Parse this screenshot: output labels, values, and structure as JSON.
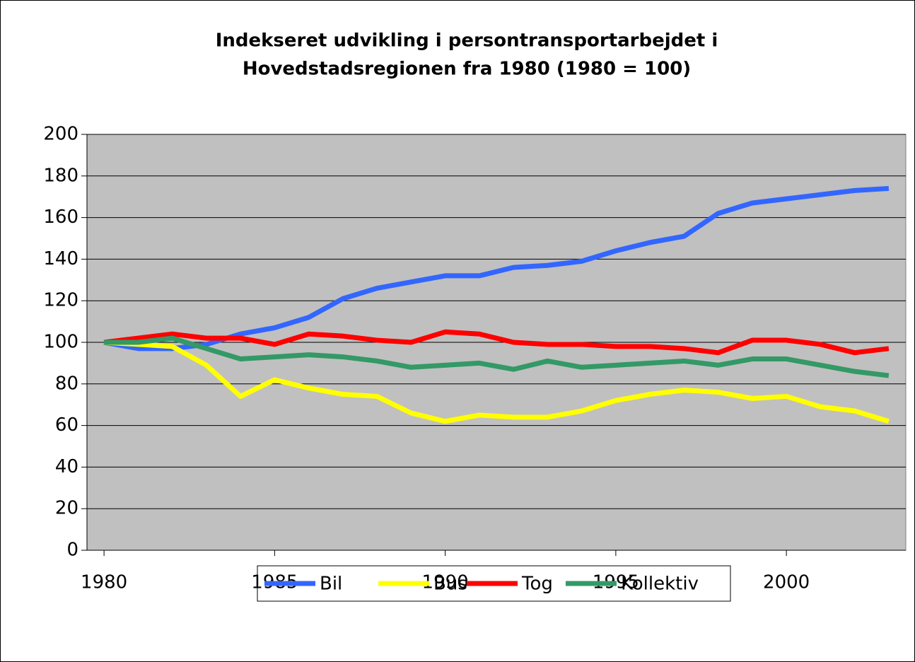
{
  "chart_data": {
    "type": "line",
    "title": [
      "Indekseret udvikling i persontransportarbejdet i",
      "Hovedstadsregionen fra 1980 (1980 = 100)"
    ],
    "x": [
      1980,
      1981,
      1982,
      1983,
      1984,
      1985,
      1986,
      1987,
      1988,
      1989,
      1990,
      1991,
      1992,
      1993,
      1994,
      1995,
      1996,
      1997,
      1998,
      1999,
      2000,
      2001,
      2002,
      2003
    ],
    "series": [
      {
        "name": "Bil",
        "color": "#3366ff",
        "values": [
          100,
          97,
          97,
          99,
          104,
          107,
          112,
          121,
          126,
          129,
          132,
          132,
          136,
          137,
          139,
          144,
          148,
          151,
          162,
          167,
          169,
          171,
          173,
          174
        ]
      },
      {
        "name": "Bus",
        "color": "#ffff00",
        "values": [
          100,
          99,
          98,
          89,
          74,
          82,
          78,
          75,
          74,
          66,
          62,
          65,
          64,
          64,
          67,
          72,
          75,
          77,
          76,
          73,
          74,
          69,
          67,
          62
        ]
      },
      {
        "name": "Tog",
        "color": "#ff0000",
        "values": [
          100,
          102,
          104,
          102,
          102,
          99,
          104,
          103,
          101,
          100,
          105,
          104,
          100,
          99,
          99,
          98,
          98,
          97,
          95,
          101,
          101,
          99,
          95,
          97
        ]
      },
      {
        "name": "Kollektiv",
        "color": "#339966",
        "values": [
          100,
          100,
          102,
          97,
          92,
          93,
          94,
          93,
          91,
          88,
          89,
          90,
          87,
          91,
          88,
          89,
          90,
          91,
          89,
          92,
          92,
          89,
          86,
          84
        ]
      }
    ],
    "xlim": [
      1979.5,
      2003.5
    ],
    "xticks": [
      1980,
      1985,
      1990,
      1995,
      2000
    ],
    "ylim": [
      0,
      200
    ],
    "yticks": [
      0,
      20,
      40,
      60,
      80,
      100,
      120,
      140,
      160,
      180,
      200
    ],
    "grid": true,
    "legend": "bottom"
  }
}
